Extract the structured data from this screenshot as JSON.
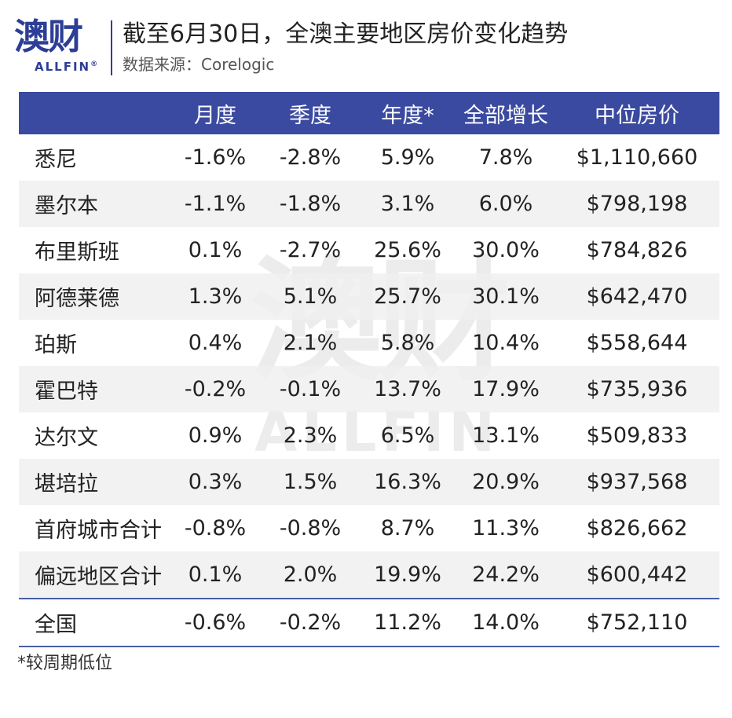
{
  "brand": {
    "logo_cn": "澳财",
    "logo_en": "ALLFIN",
    "registered": "®"
  },
  "title": "截至6月30日，全澳主要地区房价变化趋势",
  "subtitle": "数据来源：Corelogic",
  "watermark": {
    "cn": "澳财",
    "en": "ALLFIN"
  },
  "chart_data": {
    "type": "table",
    "columns": [
      "",
      "月度",
      "季度",
      "年度*",
      "全部增长",
      "中位房价"
    ],
    "rows": [
      [
        "悉尼",
        "-1.6%",
        "-2.8%",
        "5.9%",
        "7.8%",
        "$1,110,660"
      ],
      [
        "墨尔本",
        "-1.1%",
        "-1.8%",
        "3.1%",
        "6.0%",
        "$798,198"
      ],
      [
        "布里斯班",
        "0.1%",
        "-2.7%",
        "25.6%",
        "30.0%",
        "$784,826"
      ],
      [
        "阿德莱德",
        "1.3%",
        "5.1%",
        "25.7%",
        "30.1%",
        "$642,470"
      ],
      [
        "珀斯",
        "0.4%",
        "2.1%",
        "5.8%",
        "10.4%",
        "$558,644"
      ],
      [
        "霍巴特",
        "-0.2%",
        "-0.1%",
        "13.7%",
        "17.9%",
        "$735,936"
      ],
      [
        "达尔文",
        "0.9%",
        "2.3%",
        "6.5%",
        "13.1%",
        "$509,833"
      ],
      [
        "堪培拉",
        "0.3%",
        "1.5%",
        "16.3%",
        "20.9%",
        "$937,568"
      ],
      [
        "首府城市合计",
        "-0.8%",
        "-0.8%",
        "8.7%",
        "11.3%",
        "$826,662"
      ],
      [
        "偏远地区合计",
        "0.1%",
        "2.0%",
        "19.9%",
        "24.2%",
        "$600,442"
      ],
      [
        "全国",
        "-0.6%",
        "-0.2%",
        "11.2%",
        "14.0%",
        "$752,110"
      ]
    ]
  },
  "footnote": "*较周期低位",
  "colors": {
    "brand": "#2d3e96",
    "header_bg": "#3a4aa0",
    "stripe": "#f0f0f0"
  }
}
